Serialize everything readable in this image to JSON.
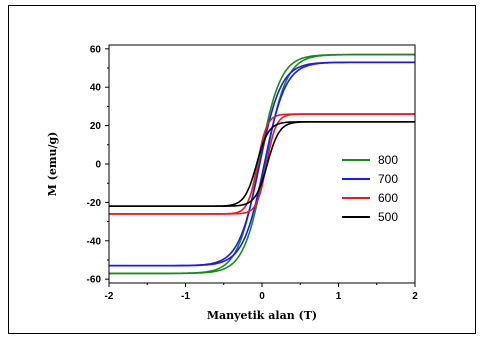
{
  "chart_data": {
    "type": "line",
    "title": "",
    "xlabel": "Manyetik alan (T)",
    "ylabel": "M (emu/g)",
    "xlim": [
      -2,
      2
    ],
    "ylim": [
      -62,
      62
    ],
    "xticks": [
      -2,
      -1,
      0,
      1,
      2
    ],
    "yticks": [
      -60,
      -40,
      -20,
      0,
      20,
      40,
      60
    ],
    "grid": false,
    "legend_position": "bottom-right",
    "series": [
      {
        "name": "800",
        "color": "#1a8a1a",
        "Ms": 57,
        "coercivity": 0.04,
        "remanence_frac": 0.15,
        "chi": 0.8,
        "x": [
          -2,
          -1.5,
          -1,
          -0.5,
          -0.3,
          -0.2,
          -0.1,
          0,
          0.1,
          0.2,
          0.3,
          0.5,
          1,
          1.5,
          2
        ],
        "values": [
          -57,
          -56,
          -55,
          -51,
          -45,
          -36,
          -22,
          0,
          22,
          36,
          45,
          51,
          55,
          56,
          57
        ]
      },
      {
        "name": "700",
        "color": "#1a1aee",
        "Ms": 53,
        "coercivity": 0.03,
        "remanence_frac": 0.12,
        "chi": 0.8,
        "x": [
          -2,
          -1.5,
          -1,
          -0.5,
          -0.3,
          -0.2,
          -0.1,
          0,
          0.1,
          0.2,
          0.3,
          0.5,
          1,
          1.5,
          2
        ],
        "values": [
          -53,
          -52,
          -51,
          -48,
          -42,
          -34,
          -20,
          0,
          20,
          34,
          42,
          48,
          51,
          52,
          53
        ]
      },
      {
        "name": "600",
        "color": "#ee1a1a",
        "Ms": 26,
        "coercivity": 0.06,
        "remanence_frac": 0.3,
        "chi": 2.5,
        "x": [
          -2,
          -1.5,
          -1,
          -0.5,
          -0.3,
          -0.2,
          -0.1,
          0,
          0.1,
          0.2,
          0.3,
          0.5,
          1,
          1.5,
          2
        ],
        "values": [
          -26,
          -25,
          -23,
          -20,
          -17,
          -14,
          -9,
          0,
          9,
          14,
          17,
          20,
          23,
          25,
          26
        ]
      },
      {
        "name": "500",
        "color": "#000000",
        "Ms": 22,
        "coercivity": 0.07,
        "remanence_frac": 0.1,
        "chi": 2.0,
        "x": [
          -2,
          -1.5,
          -1,
          -0.5,
          -0.3,
          -0.2,
          -0.1,
          0,
          0.1,
          0.2,
          0.3,
          0.5,
          1,
          1.5,
          2
        ],
        "values": [
          -22,
          -21,
          -20,
          -17,
          -14,
          -11,
          -6,
          0,
          6,
          11,
          14,
          17,
          20,
          21,
          22
        ]
      }
    ]
  }
}
